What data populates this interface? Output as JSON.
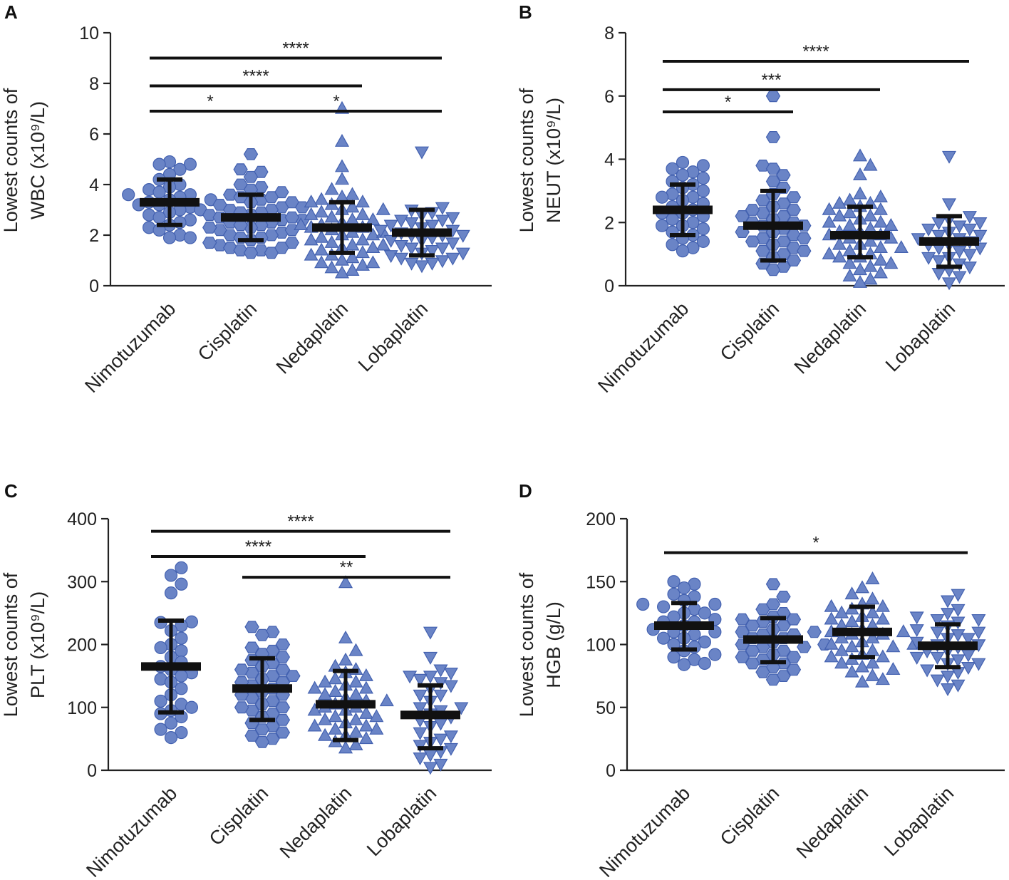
{
  "colors": {
    "point_fill": "#6a84c6",
    "point_stroke": "#4361b0",
    "summary": "#111111",
    "axis": "#222222"
  },
  "chart_data": [
    {
      "panel": "A",
      "type": "scatter",
      "ylabel_line1": "Lowest counts of",
      "ylabel_line2": "WBC (x10⁹/L)",
      "ylim": [
        0,
        10
      ],
      "yticks": [
        0,
        2,
        4,
        6,
        8,
        10
      ],
      "categories": [
        "Nimotuzumab",
        "Cisplatin",
        "Nedaplatin",
        "Lobaplatin"
      ],
      "markers": [
        "circle",
        "hexagon",
        "triangle-up",
        "triangle-down"
      ],
      "summary": [
        {
          "mean": 3.3,
          "lower": 2.4,
          "upper": 4.2
        },
        {
          "mean": 2.7,
          "lower": 1.8,
          "upper": 3.6
        },
        {
          "mean": 2.3,
          "lower": 1.3,
          "upper": 3.3
        },
        {
          "mean": 2.1,
          "lower": 1.2,
          "upper": 3.0
        }
      ],
      "series": [
        {
          "name": "Nimotuzumab",
          "values": [
            4.9,
            4.8,
            4.8,
            4.6,
            4.4,
            4.2,
            4.0,
            3.9,
            3.8,
            3.7,
            3.6,
            3.5,
            3.4,
            3.4,
            3.3,
            3.2,
            3.1,
            3.0,
            3.0,
            2.9,
            2.8,
            2.7,
            2.6,
            2.5,
            2.4,
            2.3,
            2.2,
            2.0,
            1.9,
            1.9,
            3.6,
            3.2
          ]
        },
        {
          "name": "Cisplatin",
          "values": [
            5.2,
            4.6,
            4.5,
            4.3,
            4.0,
            3.9,
            3.8,
            3.7,
            3.6,
            3.5,
            3.4,
            3.3,
            3.2,
            3.1,
            3.0,
            3.0,
            2.9,
            2.8,
            2.8,
            2.7,
            2.6,
            2.6,
            2.5,
            2.4,
            2.3,
            2.2,
            2.1,
            2.0,
            1.9,
            1.8,
            1.7,
            1.6,
            1.5,
            1.4,
            1.4,
            1.3,
            1.3,
            2.5,
            2.2,
            3.3,
            2.0,
            1.7,
            2.9,
            3.5,
            1.5,
            2.4,
            2.7,
            1.9,
            3.1,
            2.3
          ]
        },
        {
          "name": "Nedaplatin",
          "values": [
            7.0,
            5.7,
            4.7,
            4.2,
            3.8,
            3.6,
            3.5,
            3.4,
            3.3,
            3.2,
            3.1,
            3.0,
            2.9,
            2.8,
            2.7,
            2.6,
            2.5,
            2.4,
            2.3,
            2.2,
            2.1,
            2.0,
            1.9,
            1.8,
            1.7,
            1.6,
            1.5,
            1.4,
            1.3,
            1.2,
            1.1,
            1.0,
            0.9,
            0.8,
            0.7,
            0.6,
            0.5,
            2.6,
            2.0,
            1.6,
            3.0,
            2.3,
            1.2,
            2.8,
            1.8,
            3.3,
            2.1,
            1.5,
            0.9,
            2.4
          ]
        },
        {
          "name": "Lobaplatin",
          "values": [
            5.3,
            3.1,
            3.0,
            2.9,
            2.8,
            2.7,
            2.6,
            2.5,
            2.4,
            2.3,
            2.2,
            2.1,
            2.0,
            2.0,
            1.9,
            1.8,
            1.7,
            1.6,
            1.5,
            1.4,
            1.3,
            1.2,
            1.1,
            1.0,
            0.9,
            0.8,
            2.6,
            2.2,
            1.8,
            1.5,
            1.1,
            2.4,
            2.0,
            1.3,
            0.9
          ]
        }
      ],
      "significance": [
        {
          "from": 0,
          "to": 3,
          "label": "****",
          "level": 9.0
        },
        {
          "from": 0,
          "to": 2,
          "label": "****",
          "level": 7.9
        },
        {
          "from": 0,
          "to": 1,
          "label": "*",
          "level": 6.9
        },
        {
          "from": 1,
          "to": 3,
          "label": "*",
          "level": 6.9
        }
      ]
    },
    {
      "panel": "B",
      "type": "scatter",
      "ylabel_line1": "Lowest counts of",
      "ylabel_line2": "NEUT (x10⁹/L)",
      "ylim": [
        0,
        8
      ],
      "yticks": [
        0,
        2,
        4,
        6,
        8
      ],
      "categories": [
        "Nimotuzumab",
        "Cisplatin",
        "Nedaplatin",
        "Lobaplatin"
      ],
      "markers": [
        "circle",
        "hexagon",
        "triangle-up",
        "triangle-down"
      ],
      "summary": [
        {
          "mean": 2.4,
          "lower": 1.6,
          "upper": 3.2
        },
        {
          "mean": 1.9,
          "lower": 0.8,
          "upper": 3.0
        },
        {
          "mean": 1.6,
          "lower": 0.9,
          "upper": 2.5
        },
        {
          "mean": 1.4,
          "lower": 0.6,
          "upper": 2.2
        }
      ],
      "series": [
        {
          "name": "Nimotuzumab",
          "values": [
            3.9,
            3.8,
            3.7,
            3.6,
            3.5,
            3.4,
            3.3,
            3.2,
            3.1,
            3.0,
            2.9,
            2.8,
            2.7,
            2.6,
            2.5,
            2.4,
            2.3,
            2.2,
            2.1,
            2.0,
            1.9,
            1.8,
            1.7,
            1.6,
            1.5,
            1.4,
            1.3,
            1.2,
            1.1,
            2.3,
            1.9,
            2.8
          ]
        },
        {
          "name": "Cisplatin",
          "values": [
            6.0,
            4.7,
            3.8,
            3.7,
            3.5,
            3.3,
            3.1,
            2.9,
            2.8,
            2.7,
            2.6,
            2.5,
            2.4,
            2.3,
            2.2,
            2.1,
            2.0,
            1.9,
            1.8,
            1.7,
            1.6,
            1.5,
            1.4,
            1.3,
            1.2,
            1.1,
            1.0,
            0.9,
            0.8,
            0.7,
            0.6,
            0.5,
            2.4,
            1.9,
            1.4,
            2.2,
            1.7,
            1.1,
            2.0,
            1.5
          ]
        },
        {
          "name": "Nedaplatin",
          "values": [
            4.1,
            3.8,
            3.5,
            2.9,
            2.8,
            2.7,
            2.6,
            2.5,
            2.4,
            2.3,
            2.2,
            2.1,
            2.0,
            1.9,
            1.8,
            1.7,
            1.6,
            1.5,
            1.4,
            1.3,
            1.2,
            1.1,
            1.0,
            0.9,
            0.8,
            0.7,
            0.6,
            0.5,
            0.4,
            0.3,
            0.2,
            0.1,
            2.4,
            1.9,
            1.5,
            1.2,
            0.9,
            2.2,
            1.7,
            1.3,
            2.6,
            1.0,
            2.0,
            1.6,
            0.7
          ]
        },
        {
          "name": "Lobaplatin",
          "values": [
            4.1,
            2.6,
            2.2,
            2.1,
            2.0,
            1.9,
            1.8,
            1.7,
            1.6,
            1.5,
            1.4,
            1.3,
            1.2,
            1.1,
            1.0,
            0.9,
            0.8,
            0.7,
            0.6,
            0.5,
            0.4,
            0.3,
            0.1,
            1.8,
            1.5,
            1.2,
            0.9,
            1.6,
            1.3,
            2.0
          ]
        }
      ],
      "significance": [
        {
          "from": 0,
          "to": 3,
          "label": "****",
          "level": 7.1
        },
        {
          "from": 0,
          "to": 2,
          "label": "***",
          "level": 6.2
        },
        {
          "from": 0,
          "to": 1,
          "label": "*",
          "level": 5.5
        }
      ]
    },
    {
      "panel": "C",
      "type": "scatter",
      "ylabel_line1": "Lowest counts of",
      "ylabel_line2": "PLT (x10⁹/L)",
      "ylim": [
        0,
        400
      ],
      "yticks": [
        0,
        100,
        200,
        300,
        400
      ],
      "categories": [
        "Nimotuzumab",
        "Cisplatin",
        "Nedaplatin",
        "Lobaplatin"
      ],
      "markers": [
        "circle",
        "hexagon",
        "triangle-up",
        "triangle-down"
      ],
      "summary": [
        {
          "mean": 165,
          "lower": 92,
          "upper": 238
        },
        {
          "mean": 130,
          "lower": 80,
          "upper": 178
        },
        {
          "mean": 105,
          "lower": 48,
          "upper": 158
        },
        {
          "mean": 88,
          "lower": 35,
          "upper": 135
        }
      ],
      "series": [
        {
          "name": "Nimotuzumab",
          "values": [
            322,
            310,
            296,
            282,
            236,
            235,
            230,
            222,
            210,
            200,
            195,
            190,
            180,
            172,
            165,
            160,
            155,
            150,
            145,
            140,
            130,
            120,
            110,
            105,
            100,
            95,
            90,
            85,
            75,
            65,
            60,
            52
          ]
        },
        {
          "name": "Cisplatin",
          "values": [
            228,
            220,
            215,
            200,
            195,
            190,
            185,
            180,
            175,
            170,
            165,
            160,
            155,
            150,
            145,
            140,
            135,
            130,
            125,
            120,
            115,
            110,
            105,
            100,
            95,
            90,
            85,
            80,
            75,
            70,
            65,
            60,
            55,
            50,
            45,
            160,
            140,
            120,
            100,
            150
          ]
        },
        {
          "name": "Nedaplatin",
          "values": [
            298,
            210,
            190,
            175,
            165,
            160,
            155,
            150,
            145,
            140,
            135,
            130,
            125,
            120,
            115,
            110,
            105,
            100,
            95,
            90,
            85,
            80,
            75,
            70,
            65,
            60,
            55,
            50,
            45,
            40,
            35,
            130,
            110,
            95,
            80,
            65,
            140,
            120,
            100,
            85,
            70,
            55
          ]
        },
        {
          "name": "Lobaplatin",
          "values": [
            220,
            180,
            160,
            155,
            150,
            145,
            140,
            135,
            130,
            120,
            110,
            100,
            95,
            90,
            85,
            80,
            70,
            60,
            50,
            45,
            40,
            35,
            30,
            25,
            20,
            10,
            5,
            120,
            75,
            55,
            150,
            100
          ]
        }
      ],
      "significance": [
        {
          "from": 0,
          "to": 3,
          "label": "****",
          "level": 380
        },
        {
          "from": 0,
          "to": 2,
          "label": "****",
          "level": 340
        },
        {
          "from": 1,
          "to": 3,
          "label": "**",
          "level": 307
        }
      ]
    },
    {
      "panel": "D",
      "type": "scatter",
      "ylabel_line1": "Lowest counts of",
      "ylabel_line2": "HGB (g/L)",
      "ylim": [
        0,
        200
      ],
      "yticks": [
        0,
        50,
        100,
        150,
        200
      ],
      "categories": [
        "Nimotuzumab",
        "Cisplatin",
        "Nedaplatin",
        "Lobaplatin"
      ],
      "markers": [
        "circle",
        "hexagon",
        "triangle-up",
        "triangle-down"
      ],
      "summary": [
        {
          "mean": 115,
          "lower": 96,
          "upper": 133
        },
        {
          "mean": 104,
          "lower": 86,
          "upper": 121
        },
        {
          "mean": 110,
          "lower": 90,
          "upper": 130
        },
        {
          "mean": 99,
          "lower": 82,
          "upper": 116
        }
      ],
      "series": [
        {
          "name": "Nimotuzumab",
          "values": [
            150,
            148,
            145,
            140,
            138,
            135,
            132,
            130,
            128,
            125,
            122,
            120,
            118,
            115,
            112,
            110,
            108,
            105,
            102,
            100,
            98,
            95,
            92,
            90,
            88,
            85,
            84,
            118,
            110,
            125,
            105,
            132
          ]
        },
        {
          "name": "Cisplatin",
          "values": [
            148,
            138,
            132,
            128,
            125,
            122,
            120,
            118,
            115,
            112,
            110,
            108,
            105,
            102,
            100,
            98,
            95,
            92,
            90,
            88,
            85,
            82,
            80,
            78,
            75,
            72,
            115,
            105,
            95,
            110,
            100,
            90,
            120,
            85,
            108,
            98
          ]
        },
        {
          "name": "Nedaplatin",
          "values": [
            152,
            145,
            140,
            136,
            132,
            130,
            128,
            125,
            122,
            120,
            118,
            115,
            112,
            110,
            108,
            105,
            102,
            100,
            98,
            95,
            92,
            90,
            88,
            85,
            82,
            80,
            78,
            75,
            72,
            70,
            125,
            115,
            105,
            95,
            85,
            120,
            110,
            100,
            90,
            130,
            108,
            98
          ]
        },
        {
          "name": "Lobaplatin",
          "values": [
            140,
            135,
            128,
            125,
            122,
            120,
            118,
            115,
            112,
            110,
            108,
            105,
            102,
            100,
            98,
            95,
            92,
            90,
            88,
            85,
            82,
            80,
            78,
            75,
            72,
            68,
            65,
            110,
            100,
            90,
            120,
            95,
            105,
            85
          ]
        }
      ],
      "significance": [
        {
          "from": 0,
          "to": 3,
          "label": "*",
          "level": 173
        }
      ]
    }
  ]
}
